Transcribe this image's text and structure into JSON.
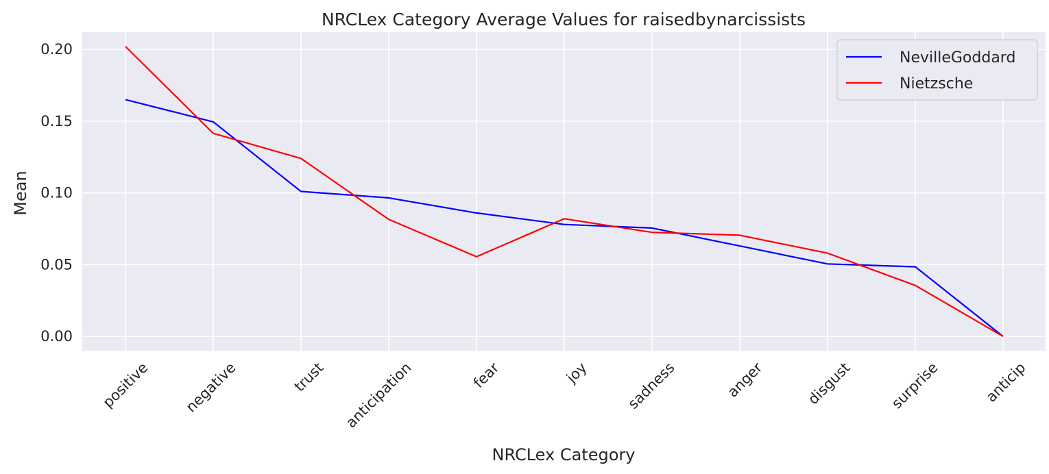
{
  "chart_data": {
    "type": "line",
    "title": "NRCLex Category Average Values for raisedbynarcissists",
    "xlabel": "NRCLex Category",
    "ylabel": "Mean",
    "categories": [
      "positive",
      "negative",
      "trust",
      "anticipation",
      "fear",
      "joy",
      "sadness",
      "anger",
      "disgust",
      "surprise",
      "anticip"
    ],
    "y_ticks": [
      "0.00",
      "0.05",
      "0.10",
      "0.15",
      "0.20"
    ],
    "ylim": [
      -0.01,
      0.212
    ],
    "grid": true,
    "legend_position": "top-right",
    "series": [
      {
        "name": "NevilleGoddard",
        "color": "#0000ff",
        "values": [
          0.165,
          0.1495,
          0.101,
          0.0965,
          0.086,
          0.078,
          0.0755,
          0.063,
          0.0505,
          0.0485,
          0.0
        ]
      },
      {
        "name": "Nietzsche",
        "color": "#ff0000",
        "values": [
          0.202,
          0.1415,
          0.124,
          0.0815,
          0.0555,
          0.082,
          0.0725,
          0.0705,
          0.058,
          0.0355,
          0.0
        ]
      }
    ]
  }
}
